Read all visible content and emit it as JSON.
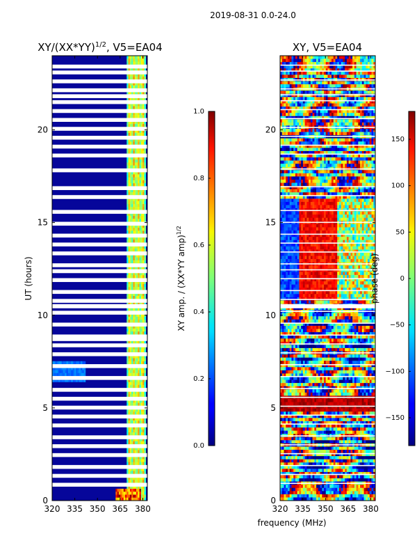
{
  "chart_data": {
    "suptitle": "2019-08-31 0.0-24.0",
    "xlabel": "frequency (MHz)",
    "panels": [
      {
        "type": "heatmap",
        "title_text": "XY/(XX*YY)",
        "title_exponent": "1/2",
        "title_suffix": ", V5=EA04",
        "ylabel": "UT (hours)",
        "xlim": [
          320,
          383
        ],
        "ylim": [
          0,
          24
        ],
        "xticks": [
          "320",
          "335",
          "350",
          "365",
          "380"
        ],
        "yticks": [
          "0",
          "5",
          "10",
          "15",
          "20"
        ],
        "colorbar": {
          "label_text": "XY amp. / (XX*YY amp)",
          "label_exponent": "1/2",
          "range": [
            0.0,
            1.0
          ],
          "ticks": [
            "0.0",
            "0.2",
            "0.4",
            "0.6",
            "0.8",
            "1.0"
          ]
        }
      },
      {
        "type": "heatmap",
        "title_text": "XY, V5=EA04",
        "xlim": [
          320,
          383
        ],
        "ylim": [
          0,
          24
        ],
        "xticks": [
          "320",
          "335",
          "350",
          "365",
          "380"
        ],
        "yticks": [
          "0",
          "5",
          "10",
          "15",
          "20"
        ],
        "colorbar": {
          "label_text": "phase (deg)",
          "range": [
            -180,
            180
          ],
          "ticks": [
            "−150",
            "−100",
            "−50",
            "0",
            "50",
            "100",
            "150"
          ]
        }
      }
    ]
  }
}
